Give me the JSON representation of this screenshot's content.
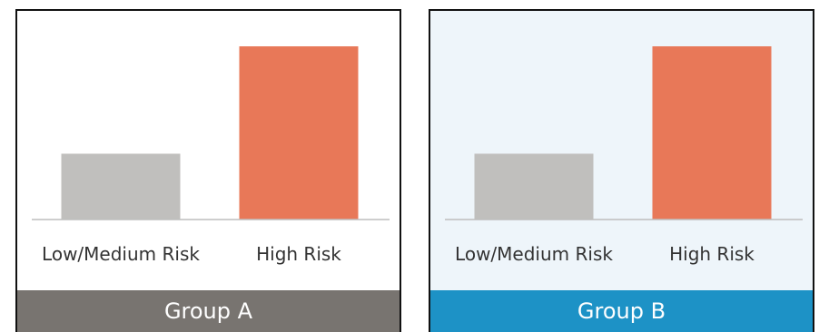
{
  "chart_data": [
    {
      "type": "bar",
      "group": "Group A",
      "categories": [
        "Low/Medium Risk",
        "High Risk"
      ],
      "values": [
        38,
        100
      ],
      "bar_colors": [
        "#c0bfbd",
        "#e87858"
      ],
      "ylim": [
        0,
        110
      ],
      "grid": false,
      "background": "#ffffff",
      "footer_color": "#787470"
    },
    {
      "type": "bar",
      "group": "Group B",
      "categories": [
        "Low/Medium Risk",
        "High Risk"
      ],
      "values": [
        38,
        100
      ],
      "bar_colors": [
        "#c0bfbd",
        "#e87858"
      ],
      "ylim": [
        0,
        110
      ],
      "grid": false,
      "background": "#eef5fa",
      "footer_color": "#1d92c6"
    }
  ]
}
